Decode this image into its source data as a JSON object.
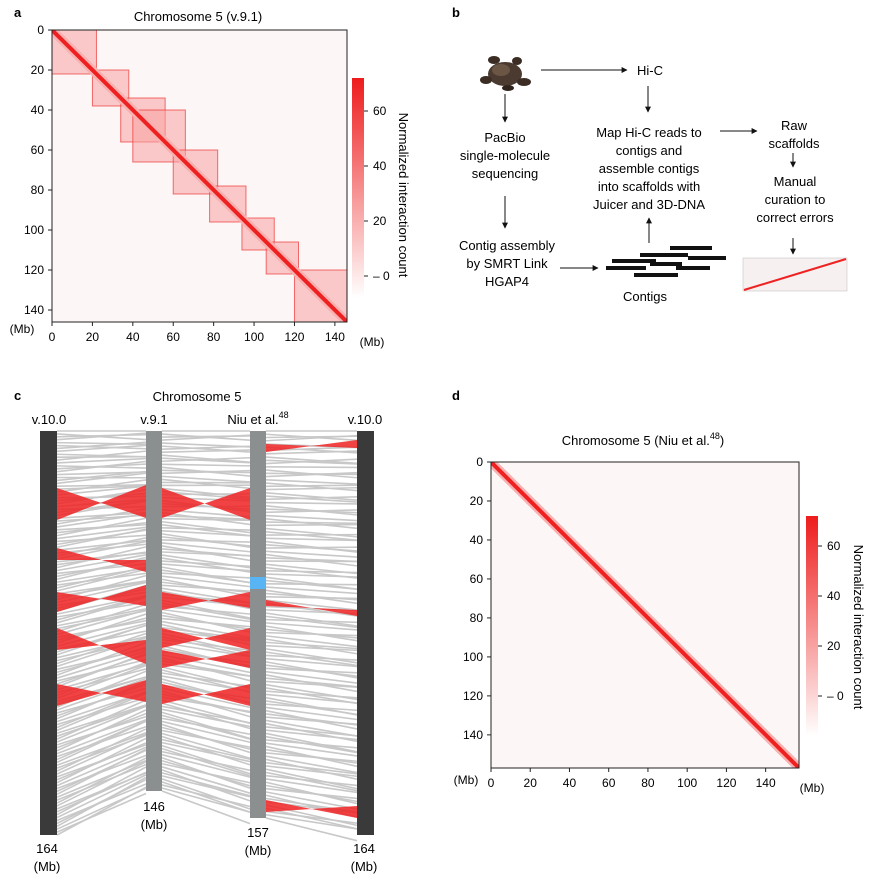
{
  "panels": {
    "a": {
      "letter": "a",
      "title": "Chromosome 5 (v.9.1)",
      "unit_y": "(Mb)",
      "unit_x": "(Mb)",
      "colorbar_label": "Normalized interaction count"
    },
    "b": {
      "letter": "b",
      "hic": "Hi-C",
      "pacbio": [
        "PacBio",
        "single-molecule",
        "sequencing"
      ],
      "map": [
        "Map Hi-C reads to",
        "contigs and",
        "assemble contigs",
        "into scaffolds with",
        "Juicer and 3D-DNA"
      ],
      "raw": [
        "Raw",
        "scaffolds"
      ],
      "manual": [
        "Manual",
        "curation to",
        "correct errors"
      ],
      "contig_assembly": [
        "Contig assembly",
        "by SMRT Link",
        "HGAP4"
      ],
      "contigs": "Contigs",
      "icons": [
        "frog-photo",
        "contig-bars",
        "contact-map-thumbnail"
      ]
    },
    "c": {
      "letter": "c",
      "title": "Chromosome 5",
      "tracks": [
        {
          "label": "v.10.0",
          "length_label": "164",
          "unit": "(Mb)"
        },
        {
          "label": "v.9.1",
          "length_label": "146",
          "unit": "(Mb)"
        },
        {
          "label": "Niu et al.",
          "sup": "48",
          "length_label": "157",
          "unit": "(Mb)"
        },
        {
          "label": "v.10.0",
          "length_label": "164",
          "unit": "(Mb)"
        }
      ],
      "colors": {
        "track_dark": "#3a3a3a",
        "track_grey": "#8c8f8f",
        "link_grey": "#c8c8c8",
        "link_red": "#ee2222",
        "highlight": "#58b4f2"
      }
    },
    "d": {
      "letter": "d",
      "title": "Chromosome 5 (Niu et al.",
      "title_sup": "48",
      "title_end": ")",
      "unit_y": "(Mb)",
      "unit_x": "(Mb)",
      "colorbar_label": "Normalized interaction count"
    }
  },
  "chart_data": [
    {
      "type": "heatmap",
      "panel": "a",
      "title": "Chromosome 5 (v.9.1)",
      "xlabel": "(Mb)",
      "ylabel": "(Mb)",
      "x_ticks": [
        0,
        20,
        40,
        60,
        80,
        100,
        120,
        140
      ],
      "y_ticks": [
        0,
        20,
        40,
        60,
        80,
        100,
        120,
        140
      ],
      "xlim": [
        0,
        146
      ],
      "ylim": [
        0,
        146
      ],
      "colorbar": {
        "label": "Normalized interaction count",
        "ticks": [
          0,
          20,
          40,
          60
        ],
        "range": [
          -8,
          72
        ],
        "colors": [
          "#ffffff",
          "#ee1c1c"
        ]
      },
      "blocks": [
        [
          0,
          22
        ],
        [
          20,
          38
        ],
        [
          34,
          56
        ],
        [
          40,
          66
        ],
        [
          60,
          82
        ],
        [
          78,
          96
        ],
        [
          94,
          110
        ],
        [
          106,
          122
        ],
        [
          120,
          146
        ]
      ]
    },
    {
      "type": "heatmap",
      "panel": "d",
      "title": "Chromosome 5 (Niu et al.48)",
      "xlabel": "(Mb)",
      "ylabel": "(Mb)",
      "x_ticks": [
        0,
        20,
        40,
        60,
        80,
        100,
        120,
        140
      ],
      "y_ticks": [
        0,
        20,
        40,
        60,
        80,
        100,
        120,
        140
      ],
      "xlim": [
        0,
        157
      ],
      "ylim": [
        0,
        157
      ],
      "colorbar": {
        "label": "Normalized interaction count",
        "ticks": [
          0,
          20,
          40,
          60
        ],
        "range": [
          -16,
          72
        ],
        "colors": [
          "#ffffff",
          "#ee1c1c"
        ]
      }
    }
  ]
}
